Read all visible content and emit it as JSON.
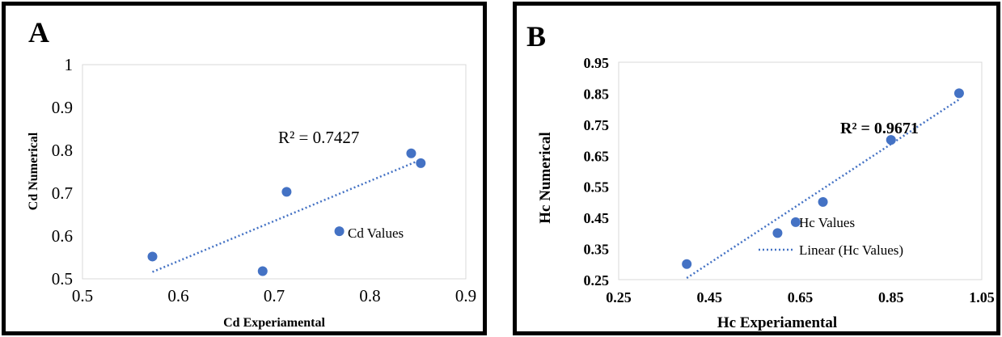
{
  "chart_data": [
    {
      "panel_letter": "A",
      "type": "scatter",
      "xlabel": "Cd Experiamental",
      "ylabel": "Cd Numerical",
      "xlim": [
        0.5,
        0.9
      ],
      "ylim": [
        0.5,
        1.0
      ],
      "x_ticks": [
        "0.5",
        "0.6",
        "0.7",
        "0.8",
        "0.9"
      ],
      "y_ticks": [
        "0.5",
        "0.6",
        "0.7",
        "0.8",
        "0.9",
        "1"
      ],
      "series": [
        {
          "name": "Cd Values",
          "color": "#4472c4",
          "x": [
            0.573,
            0.688,
            0.713,
            0.768,
            0.843,
            0.853
          ],
          "y": [
            0.552,
            0.518,
            0.703,
            0.611,
            0.793,
            0.77
          ]
        }
      ],
      "trendline": {
        "style": "dotted",
        "color": "#4472c4",
        "x": [
          0.573,
          0.853
        ],
        "y": [
          0.516,
          0.778
        ]
      },
      "r2_label": "R² = 0.7427",
      "legend": [
        "Cd Values"
      ],
      "grid": false
    },
    {
      "panel_letter": "B",
      "type": "scatter",
      "xlabel": "Hc Experiamental",
      "ylabel": "Hc Numerical",
      "xlim": [
        0.25,
        1.05
      ],
      "ylim": [
        0.25,
        0.95
      ],
      "x_ticks": [
        "0.25",
        "0.45",
        "0.65",
        "0.85",
        "1.05"
      ],
      "y_ticks": [
        "0.25",
        "0.35",
        "0.45",
        "0.55",
        "0.65",
        "0.75",
        "0.85",
        "0.95"
      ],
      "series": [
        {
          "name": "Hc  Values",
          "color": "#4472c4",
          "x": [
            0.4,
            0.6,
            0.64,
            0.7,
            0.85,
            1.0
          ],
          "y": [
            0.3,
            0.4,
            0.435,
            0.5,
            0.7,
            0.85
          ]
        }
      ],
      "trendline": {
        "name": "Linear (Hc  Values)",
        "style": "dotted",
        "color": "#4472c4",
        "x": [
          0.4,
          1.0
        ],
        "y": [
          0.255,
          0.83
        ]
      },
      "r2_label": "R² = 0.9671",
      "legend": [
        "Hc  Values",
        "Linear (Hc  Values)"
      ],
      "grid": false
    }
  ]
}
